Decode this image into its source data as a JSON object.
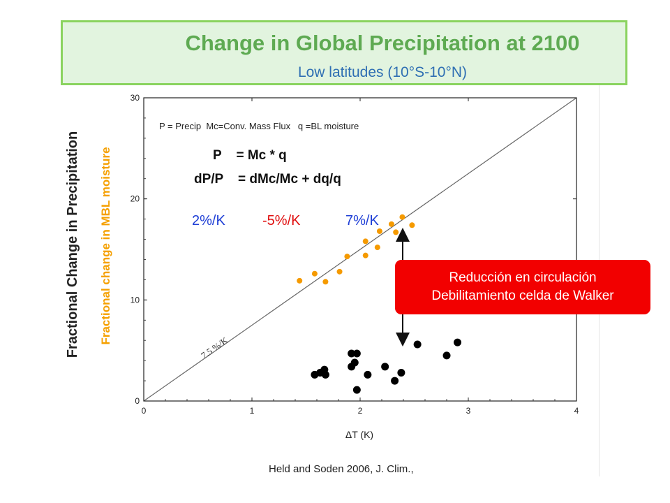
{
  "title": {
    "main": "Change in Global Precipitation at 2100",
    "sub": "Low latitudes (10°S-10°N)"
  },
  "callout": {
    "line1": "Reducción en circulación",
    "line2": "Debilitamiento celda de Walker"
  },
  "colors": {
    "title_text": "#5eaa52",
    "subtitle_text": "#2f6fb3",
    "title_box_fill": "#e2f4df",
    "title_box_border": "#8ad35f",
    "callout_fill": "#f20000",
    "orange_points": "#f59a00",
    "black_points": "#000000",
    "rate_blue": "#1f3fd6",
    "rate_red": "#e01010"
  },
  "chart_data": {
    "type": "scatter",
    "xlabel": "ΔT (K)",
    "ylabel": "Fractional Change in Precipitation",
    "ylabel_secondary": "Fractional change in MBL moisture",
    "xlim": [
      0,
      4
    ],
    "ylim": [
      0,
      30
    ],
    "xticks": [
      "0",
      "1",
      "2",
      "3",
      "4"
    ],
    "yticks": [
      "0",
      "10",
      "20",
      "30"
    ],
    "legend_text": "P = Precip  Mc=Conv. Mass Flux   q =BL moisture",
    "equations": [
      "P    = Mc * q",
      "dP/P    = dMc/Mc + dq/q"
    ],
    "rates": [
      {
        "text": "2%/K",
        "color": "#1f3fd6"
      },
      {
        "text": "-5%/K",
        "color": "#e01010"
      },
      {
        "text": "7%/K",
        "color": "#1f3fd6"
      }
    ],
    "reference_line": {
      "label": "7.5 %/K",
      "x": [
        0,
        4
      ],
      "y": [
        0,
        30
      ]
    },
    "citation": "Held and Soden 2006, J. Clim.,",
    "series": [
      {
        "name": "Fractional Change in Precipitation",
        "color": "#000000",
        "points": [
          {
            "x": 1.58,
            "y": 2.6
          },
          {
            "x": 1.63,
            "y": 2.8
          },
          {
            "x": 1.67,
            "y": 3.1
          },
          {
            "x": 1.68,
            "y": 2.6
          },
          {
            "x": 1.92,
            "y": 4.7
          },
          {
            "x": 1.92,
            "y": 3.4
          },
          {
            "x": 1.95,
            "y": 3.8
          },
          {
            "x": 1.97,
            "y": 4.7
          },
          {
            "x": 1.97,
            "y": 1.1
          },
          {
            "x": 2.07,
            "y": 2.6
          },
          {
            "x": 2.23,
            "y": 3.4
          },
          {
            "x": 2.32,
            "y": 2.0
          },
          {
            "x": 2.38,
            "y": 2.8
          },
          {
            "x": 2.53,
            "y": 5.6
          },
          {
            "x": 2.8,
            "y": 4.5
          },
          {
            "x": 2.9,
            "y": 5.8
          }
        ]
      },
      {
        "name": "Fractional change in MBL moisture",
        "color": "#f59a00",
        "points": [
          {
            "x": 1.44,
            "y": 11.9
          },
          {
            "x": 1.58,
            "y": 12.6
          },
          {
            "x": 1.68,
            "y": 11.8
          },
          {
            "x": 1.81,
            "y": 12.8
          },
          {
            "x": 1.88,
            "y": 14.3
          },
          {
            "x": 2.05,
            "y": 14.4
          },
          {
            "x": 2.05,
            "y": 15.8
          },
          {
            "x": 2.16,
            "y": 15.2
          },
          {
            "x": 2.18,
            "y": 16.8
          },
          {
            "x": 2.29,
            "y": 17.5
          },
          {
            "x": 2.33,
            "y": 16.7
          },
          {
            "x": 2.39,
            "y": 18.2
          },
          {
            "x": 2.48,
            "y": 17.4
          }
        ]
      }
    ]
  }
}
